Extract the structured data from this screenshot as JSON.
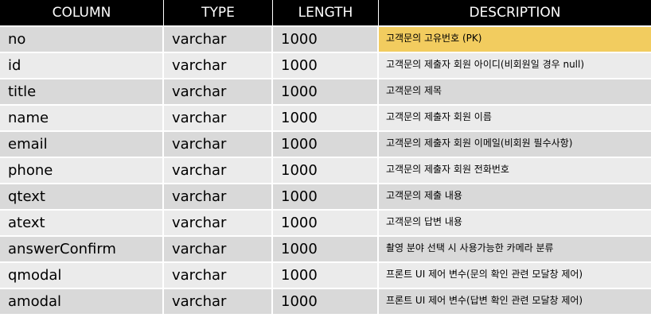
{
  "table": {
    "headers": {
      "column": "COLUMN",
      "type": "TYPE",
      "length": "LENGTH",
      "description": "DESCRIPTION"
    },
    "highlight_color": "#f2cc5f",
    "rows": [
      {
        "name": "no",
        "type": "varchar",
        "length": "1000",
        "description": "고객문의 고유번호 (PK)",
        "highlighted": true
      },
      {
        "name": "id",
        "type": "varchar",
        "length": "1000",
        "description": "고객문의 제출자 회원 아이디(비회원일 경우 null)"
      },
      {
        "name": "title",
        "type": "varchar",
        "length": "1000",
        "description": "고객문의 제목"
      },
      {
        "name": "name",
        "type": "varchar",
        "length": "1000",
        "description": "고객문의 제출자 회원 이름"
      },
      {
        "name": "email",
        "type": "varchar",
        "length": "1000",
        "description": "고객문의 제출자 회원 이메일(비회원 필수사항)"
      },
      {
        "name": "phone",
        "type": "varchar",
        "length": "1000",
        "description": "고객문의 제출자 회원 전화번호"
      },
      {
        "name": "qtext",
        "type": "varchar",
        "length": "1000",
        "description": "고객문의 제출 내용"
      },
      {
        "name": "atext",
        "type": "varchar",
        "length": "1000",
        "description": "고객문의 답변 내용"
      },
      {
        "name": "answerConfirm",
        "type": "varchar",
        "length": "1000",
        "description": "촬영 분야 선택 시 사용가능한 카메라 분류"
      },
      {
        "name": "qmodal",
        "type": "varchar",
        "length": "1000",
        "description": "프론트 UI 제어 변수(문의 확인 관련 모달창 제어)"
      },
      {
        "name": "amodal",
        "type": "varchar",
        "length": "1000",
        "description": "프론트 UI 제어 변수(답변 확인 관련 모달창 제어)"
      }
    ]
  }
}
